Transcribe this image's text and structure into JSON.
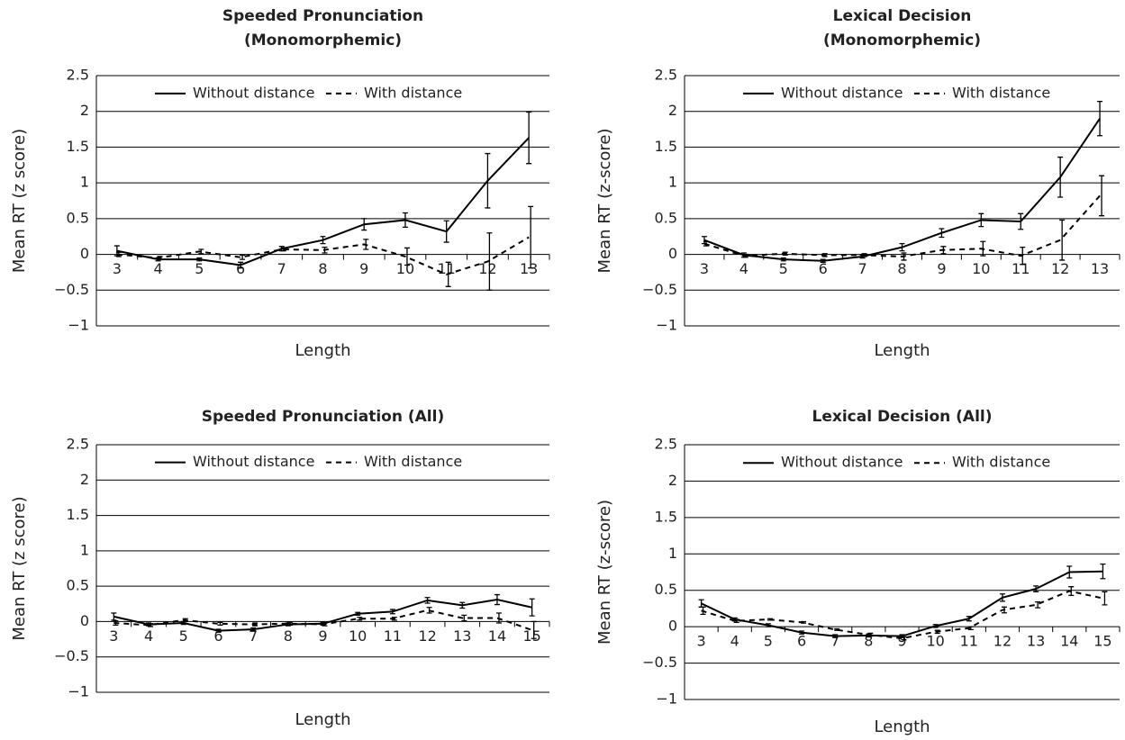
{
  "chart_data": [
    {
      "type": "line",
      "title": [
        "Speeded Pronunciation",
        "(Monomorphemic)"
      ],
      "x_label": "Length",
      "y_label": "Mean RT (z score)",
      "categories": [
        "3",
        "4",
        "5",
        "6",
        "7",
        "8",
        "9",
        "10",
        "11",
        "12",
        "13"
      ],
      "ylim": [
        -1,
        2.5
      ],
      "yticks": [
        {
          "value": -1,
          "label": "−1"
        },
        {
          "value": -0.5,
          "label": "−0.5"
        },
        0,
        0.5,
        1,
        1.5,
        2,
        2.5
      ],
      "grid": true,
      "series": [
        {
          "name": "Without distance",
          "color": "#000000",
          "dash": "solid",
          "values": [
            0.05,
            -0.07,
            -0.07,
            -0.15,
            0.08,
            0.2,
            0.42,
            0.48,
            0.32,
            1.03,
            1.63
          ],
          "errors": [
            0.07,
            0.02,
            0.02,
            0.04,
            0.03,
            0.05,
            0.08,
            0.1,
            0.15,
            0.38,
            0.36
          ]
        },
        {
          "name": "With distance",
          "color": "#000000",
          "dash": "dashed",
          "values": [
            0.0,
            -0.05,
            0.04,
            -0.04,
            0.07,
            0.06,
            0.14,
            -0.03,
            -0.28,
            -0.1,
            0.24
          ],
          "errors": [
            0.03,
            0.02,
            0.03,
            0.03,
            0.02,
            0.04,
            0.07,
            0.12,
            0.17,
            0.4,
            0.43
          ]
        }
      ]
    },
    {
      "type": "line",
      "title": [
        "Lexical Decision",
        "(Monomorphemic)"
      ],
      "x_label": "Length",
      "y_label": "Mean RT (z-score)",
      "categories": [
        "3",
        "4",
        "5",
        "6",
        "7",
        "8",
        "9",
        "10",
        "11",
        "12",
        "13"
      ],
      "ylim": [
        -1,
        2.5
      ],
      "yticks": [
        {
          "value": -1,
          "label": "−1"
        },
        {
          "value": -0.5,
          "label": "−0.5"
        },
        0,
        0.5,
        1,
        1.5,
        2,
        2.5
      ],
      "grid": true,
      "series": [
        {
          "name": "Without distance",
          "color": "#000000",
          "dash": "solid",
          "values": [
            0.2,
            -0.01,
            -0.07,
            -0.09,
            -0.03,
            0.1,
            0.3,
            0.48,
            0.46,
            1.08,
            1.9
          ],
          "errors": [
            0.05,
            0.03,
            0.02,
            0.02,
            0.02,
            0.05,
            0.06,
            0.09,
            0.11,
            0.28,
            0.24
          ]
        },
        {
          "name": "With distance",
          "color": "#000000",
          "dash": "dashed",
          "values": [
            0.15,
            -0.02,
            0.01,
            -0.01,
            -0.01,
            -0.03,
            0.06,
            0.08,
            -0.02,
            0.2,
            0.82
          ],
          "errors": [
            0.03,
            0.02,
            0.02,
            0.02,
            0.02,
            0.05,
            0.05,
            0.1,
            0.12,
            0.28,
            0.28
          ]
        }
      ]
    },
    {
      "type": "line",
      "title": [
        "Speeded Pronunciation (All)"
      ],
      "x_label": "Length",
      "y_label": "Mean RT (z score)",
      "categories": [
        "3",
        "4",
        "5",
        "6",
        "7",
        "8",
        "9",
        "10",
        "11",
        "12",
        "13",
        "14",
        "15"
      ],
      "ylim": [
        -1,
        2.5
      ],
      "yticks": [
        {
          "value": -1,
          "label": "−1"
        },
        {
          "value": -0.5,
          "label": "−0.5"
        },
        0,
        0.5,
        1,
        1.5,
        2,
        2.5
      ],
      "grid": true,
      "series": [
        {
          "name": "Without distance",
          "color": "#000000",
          "dash": "solid",
          "values": [
            0.07,
            -0.04,
            -0.02,
            -0.13,
            -0.11,
            -0.04,
            -0.03,
            0.11,
            0.14,
            0.3,
            0.23,
            0.31,
            0.2
          ],
          "errors": [
            0.05,
            0.02,
            0.02,
            0.02,
            0.02,
            0.02,
            0.02,
            0.02,
            0.03,
            0.04,
            0.04,
            0.07,
            0.12
          ]
        },
        {
          "name": "With distance",
          "color": "#000000",
          "dash": "dashed",
          "values": [
            -0.02,
            -0.05,
            0.02,
            -0.03,
            -0.04,
            -0.03,
            -0.04,
            0.04,
            0.04,
            0.16,
            0.05,
            0.05,
            -0.12
          ],
          "errors": [
            0.03,
            0.02,
            0.02,
            0.02,
            0.02,
            0.02,
            0.02,
            0.02,
            0.02,
            0.04,
            0.04,
            0.07,
            0.12
          ]
        }
      ]
    },
    {
      "type": "line",
      "title": [
        "Lexical Decision (All)"
      ],
      "x_label": "Length",
      "y_label": "Mean RT (z-score)",
      "categories": [
        "3",
        "4",
        "5",
        "6",
        "7",
        "8",
        "9",
        "10",
        "11",
        "12",
        "13",
        "14",
        "15"
      ],
      "ylim": [
        -1,
        2.5
      ],
      "yticks": [
        {
          "value": -1,
          "label": "−1"
        },
        {
          "value": -0.5,
          "label": "−0.5"
        },
        0,
        0.5,
        1,
        1.5,
        2,
        2.5
      ],
      "grid": true,
      "series": [
        {
          "name": "Without distance",
          "color": "#000000",
          "dash": "solid",
          "values": [
            0.32,
            0.1,
            0.02,
            -0.08,
            -0.13,
            -0.12,
            -0.13,
            0.01,
            0.11,
            0.4,
            0.52,
            0.75,
            0.76
          ],
          "errors": [
            0.05,
            0.02,
            0.02,
            0.02,
            0.02,
            0.02,
            0.02,
            0.02,
            0.03,
            0.05,
            0.04,
            0.08,
            0.1
          ]
        },
        {
          "name": "With distance",
          "color": "#000000",
          "dash": "dashed",
          "values": [
            0.22,
            0.08,
            0.1,
            0.06,
            -0.04,
            -0.11,
            -0.16,
            -0.07,
            -0.02,
            0.23,
            0.3,
            0.49,
            0.39
          ],
          "errors": [
            0.05,
            0.02,
            0.01,
            0.01,
            0.01,
            0.02,
            0.02,
            0.02,
            0.02,
            0.04,
            0.04,
            0.06,
            0.09
          ]
        }
      ]
    }
  ]
}
